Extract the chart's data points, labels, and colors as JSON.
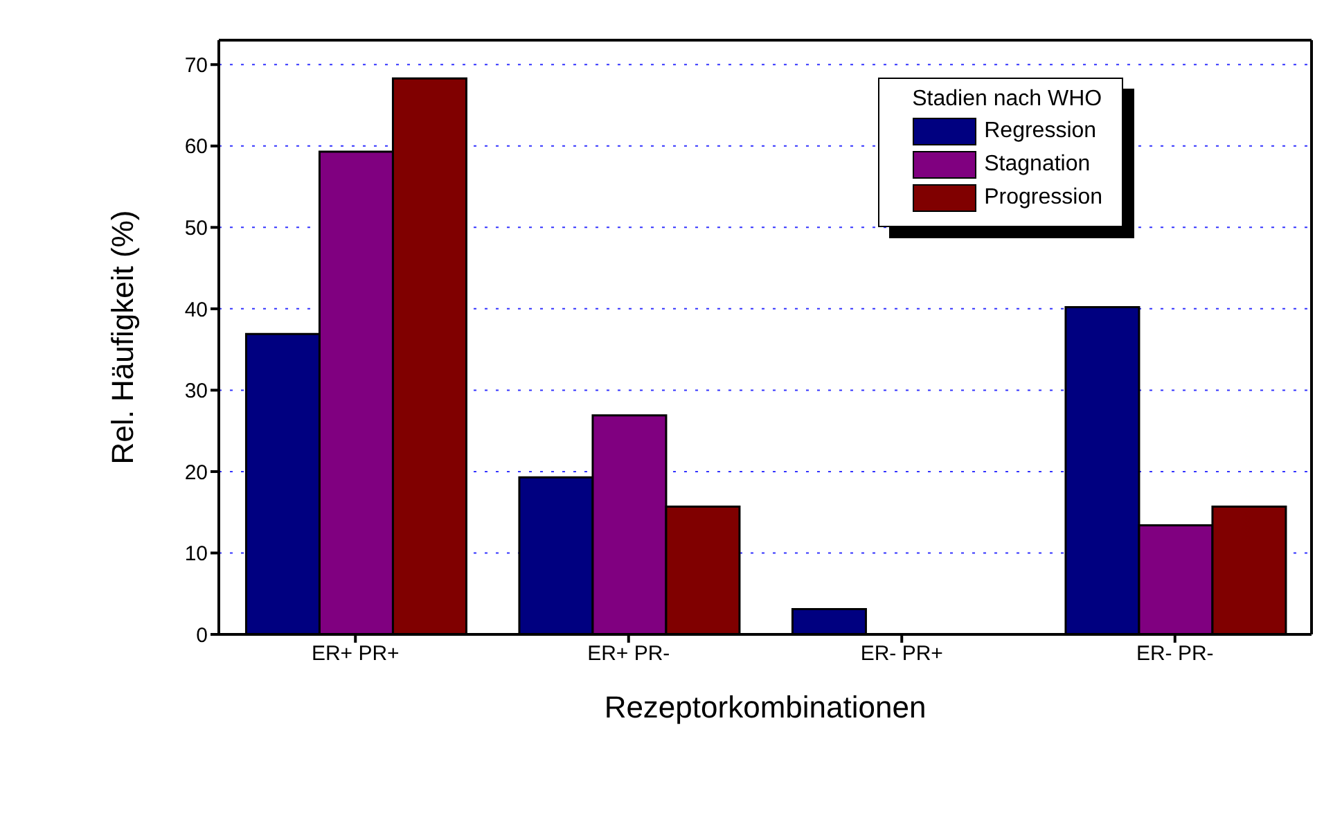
{
  "chart_data": {
    "type": "bar",
    "xlabel": "Rezeptorkombinationen",
    "ylabel": "Rel. Häufigkeit (%)",
    "legend_title": "Stadien nach WHO",
    "categories": [
      "ER+ PR+",
      "ER+ PR-",
      "ER- PR+",
      "ER- PR-"
    ],
    "series": [
      {
        "name": "Regression",
        "color": "#000080",
        "values": [
          36.9,
          19.3,
          3.1,
          40.2
        ]
      },
      {
        "name": "Stagnation",
        "color": "#800080",
        "values": [
          59.3,
          26.9,
          0,
          13.4
        ]
      },
      {
        "name": "Progression",
        "color": "#800000",
        "values": [
          68.3,
          15.7,
          0,
          15.7
        ]
      }
    ],
    "ylim": [
      0,
      73
    ],
    "yticks": [
      0,
      10,
      20,
      30,
      40,
      50,
      60,
      70
    ],
    "grid": "y",
    "legend": "top right"
  }
}
